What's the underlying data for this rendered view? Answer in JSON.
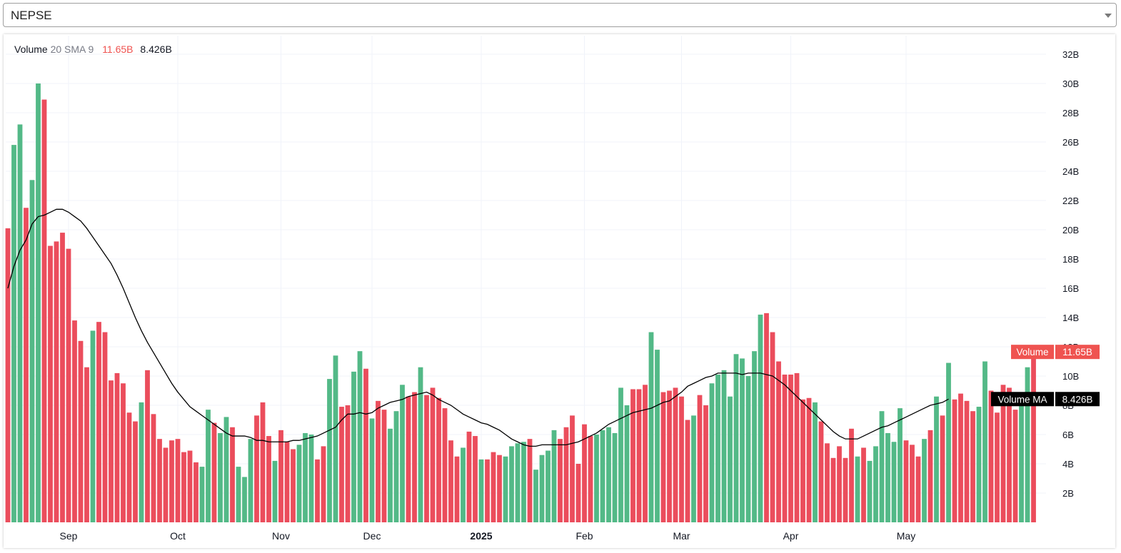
{
  "selector": {
    "value": "NEPSE",
    "icon": "chevron-down-icon"
  },
  "legend": {
    "name": "Volume",
    "params": "20 SMA 9",
    "volume_value": "11.65B",
    "ma_value": "8.426B"
  },
  "price_labels": {
    "volume": {
      "name": "Volume",
      "value": "11.65B",
      "color": "#ef5350"
    },
    "ma": {
      "name": "Volume MA",
      "value": "8.426B",
      "color": "#000000"
    }
  },
  "colors": {
    "up": "#53b987",
    "down": "#eb4d5c",
    "ma_line": "#000000",
    "grid": "#f0f3fa"
  },
  "chart_data": {
    "type": "bar",
    "ylim": [
      0,
      32
    ],
    "yunit": "B",
    "yticks": [
      "2B",
      "4B",
      "6B",
      "8B",
      "10B",
      "12B",
      "14B",
      "16B",
      "18B",
      "20B",
      "22B",
      "24B",
      "26B",
      "28B",
      "30B",
      "32B"
    ],
    "xticks": [
      {
        "label": "Sep",
        "index": 10,
        "bold": false
      },
      {
        "label": "Oct",
        "index": 28,
        "bold": false
      },
      {
        "label": "Nov",
        "index": 45,
        "bold": false
      },
      {
        "label": "Dec",
        "index": 60,
        "bold": false
      },
      {
        "label": "2025",
        "index": 78,
        "bold": true
      },
      {
        "label": "Feb",
        "index": 95,
        "bold": false
      },
      {
        "label": "Mar",
        "index": 111,
        "bold": false
      },
      {
        "label": "Apr",
        "index": 129,
        "bold": false
      },
      {
        "label": "May",
        "index": 148,
        "bold": false
      }
    ],
    "volume": [
      {
        "v": 20.1,
        "d": "down"
      },
      {
        "v": 25.8,
        "d": "up"
      },
      {
        "v": 27.2,
        "d": "up"
      },
      {
        "v": 21.5,
        "d": "down"
      },
      {
        "v": 23.4,
        "d": "up"
      },
      {
        "v": 30.0,
        "d": "up"
      },
      {
        "v": 28.9,
        "d": "down"
      },
      {
        "v": 18.9,
        "d": "down"
      },
      {
        "v": 19.2,
        "d": "down"
      },
      {
        "v": 19.8,
        "d": "down"
      },
      {
        "v": 18.7,
        "d": "down"
      },
      {
        "v": 13.8,
        "d": "down"
      },
      {
        "v": 12.4,
        "d": "down"
      },
      {
        "v": 10.6,
        "d": "down"
      },
      {
        "v": 13.1,
        "d": "up"
      },
      {
        "v": 13.7,
        "d": "down"
      },
      {
        "v": 13.0,
        "d": "down"
      },
      {
        "v": 9.7,
        "d": "down"
      },
      {
        "v": 10.2,
        "d": "down"
      },
      {
        "v": 9.5,
        "d": "down"
      },
      {
        "v": 7.5,
        "d": "down"
      },
      {
        "v": 6.9,
        "d": "down"
      },
      {
        "v": 8.2,
        "d": "up"
      },
      {
        "v": 10.4,
        "d": "down"
      },
      {
        "v": 7.4,
        "d": "down"
      },
      {
        "v": 5.7,
        "d": "down"
      },
      {
        "v": 5.1,
        "d": "down"
      },
      {
        "v": 5.6,
        "d": "down"
      },
      {
        "v": 5.7,
        "d": "down"
      },
      {
        "v": 4.8,
        "d": "down"
      },
      {
        "v": 4.9,
        "d": "down"
      },
      {
        "v": 4.1,
        "d": "down"
      },
      {
        "v": 3.8,
        "d": "up"
      },
      {
        "v": 7.7,
        "d": "up"
      },
      {
        "v": 6.8,
        "d": "down"
      },
      {
        "v": 6.1,
        "d": "up"
      },
      {
        "v": 7.2,
        "d": "up"
      },
      {
        "v": 6.5,
        "d": "down"
      },
      {
        "v": 3.8,
        "d": "up"
      },
      {
        "v": 3.1,
        "d": "up"
      },
      {
        "v": 5.7,
        "d": "up"
      },
      {
        "v": 7.3,
        "d": "down"
      },
      {
        "v": 8.2,
        "d": "down"
      },
      {
        "v": 5.9,
        "d": "down"
      },
      {
        "v": 4.2,
        "d": "up"
      },
      {
        "v": 6.3,
        "d": "down"
      },
      {
        "v": 5.5,
        "d": "down"
      },
      {
        "v": 5.0,
        "d": "down"
      },
      {
        "v": 5.3,
        "d": "up"
      },
      {
        "v": 6.1,
        "d": "up"
      },
      {
        "v": 6.0,
        "d": "up"
      },
      {
        "v": 4.3,
        "d": "down"
      },
      {
        "v": 5.2,
        "d": "down"
      },
      {
        "v": 9.8,
        "d": "up"
      },
      {
        "v": 11.4,
        "d": "up"
      },
      {
        "v": 7.9,
        "d": "down"
      },
      {
        "v": 8.0,
        "d": "down"
      },
      {
        "v": 10.3,
        "d": "up"
      },
      {
        "v": 11.7,
        "d": "up"
      },
      {
        "v": 10.5,
        "d": "down"
      },
      {
        "v": 7.1,
        "d": "up"
      },
      {
        "v": 8.3,
        "d": "down"
      },
      {
        "v": 7.7,
        "d": "down"
      },
      {
        "v": 6.4,
        "d": "up"
      },
      {
        "v": 7.6,
        "d": "up"
      },
      {
        "v": 9.4,
        "d": "up"
      },
      {
        "v": 8.6,
        "d": "down"
      },
      {
        "v": 8.9,
        "d": "down"
      },
      {
        "v": 10.6,
        "d": "up"
      },
      {
        "v": 8.7,
        "d": "down"
      },
      {
        "v": 9.2,
        "d": "down"
      },
      {
        "v": 8.5,
        "d": "down"
      },
      {
        "v": 7.8,
        "d": "down"
      },
      {
        "v": 5.6,
        "d": "down"
      },
      {
        "v": 4.5,
        "d": "down"
      },
      {
        "v": 5.1,
        "d": "up"
      },
      {
        "v": 6.2,
        "d": "down"
      },
      {
        "v": 5.9,
        "d": "down"
      },
      {
        "v": 4.3,
        "d": "up"
      },
      {
        "v": 4.3,
        "d": "down"
      },
      {
        "v": 4.8,
        "d": "down"
      },
      {
        "v": 4.6,
        "d": "down"
      },
      {
        "v": 4.5,
        "d": "up"
      },
      {
        "v": 5.2,
        "d": "up"
      },
      {
        "v": 5.4,
        "d": "up"
      },
      {
        "v": 5.5,
        "d": "up"
      },
      {
        "v": 5.7,
        "d": "down"
      },
      {
        "v": 3.6,
        "d": "up"
      },
      {
        "v": 4.6,
        "d": "up"
      },
      {
        "v": 4.9,
        "d": "up"
      },
      {
        "v": 6.3,
        "d": "up"
      },
      {
        "v": 5.7,
        "d": "down"
      },
      {
        "v": 6.5,
        "d": "down"
      },
      {
        "v": 7.3,
        "d": "down"
      },
      {
        "v": 4.0,
        "d": "down"
      },
      {
        "v": 6.7,
        "d": "down"
      },
      {
        "v": 5.9,
        "d": "down"
      },
      {
        "v": 6.0,
        "d": "up"
      },
      {
        "v": 6.3,
        "d": "up"
      },
      {
        "v": 6.5,
        "d": "up"
      },
      {
        "v": 6.1,
        "d": "up"
      },
      {
        "v": 9.2,
        "d": "up"
      },
      {
        "v": 8.0,
        "d": "up"
      },
      {
        "v": 9.1,
        "d": "down"
      },
      {
        "v": 9.1,
        "d": "down"
      },
      {
        "v": 9.4,
        "d": "down"
      },
      {
        "v": 13.0,
        "d": "up"
      },
      {
        "v": 11.8,
        "d": "up"
      },
      {
        "v": 8.9,
        "d": "down"
      },
      {
        "v": 9.0,
        "d": "down"
      },
      {
        "v": 9.2,
        "d": "down"
      },
      {
        "v": 8.6,
        "d": "down"
      },
      {
        "v": 7.0,
        "d": "down"
      },
      {
        "v": 7.3,
        "d": "up"
      },
      {
        "v": 8.7,
        "d": "down"
      },
      {
        "v": 8.0,
        "d": "down"
      },
      {
        "v": 9.5,
        "d": "up"
      },
      {
        "v": 10.1,
        "d": "up"
      },
      {
        "v": 10.4,
        "d": "up"
      },
      {
        "v": 8.6,
        "d": "up"
      },
      {
        "v": 11.5,
        "d": "up"
      },
      {
        "v": 11.2,
        "d": "up"
      },
      {
        "v": 10.0,
        "d": "up"
      },
      {
        "v": 11.7,
        "d": "up"
      },
      {
        "v": 14.2,
        "d": "up"
      },
      {
        "v": 14.3,
        "d": "down"
      },
      {
        "v": 13.0,
        "d": "down"
      },
      {
        "v": 11.0,
        "d": "down"
      },
      {
        "v": 10.1,
        "d": "down"
      },
      {
        "v": 10.1,
        "d": "down"
      },
      {
        "v": 10.2,
        "d": "down"
      },
      {
        "v": 8.4,
        "d": "down"
      },
      {
        "v": 8.5,
        "d": "down"
      },
      {
        "v": 8.2,
        "d": "up"
      },
      {
        "v": 6.9,
        "d": "down"
      },
      {
        "v": 5.4,
        "d": "down"
      },
      {
        "v": 4.4,
        "d": "down"
      },
      {
        "v": 5.2,
        "d": "down"
      },
      {
        "v": 4.4,
        "d": "down"
      },
      {
        "v": 6.4,
        "d": "down"
      },
      {
        "v": 4.5,
        "d": "up"
      },
      {
        "v": 5.1,
        "d": "down"
      },
      {
        "v": 4.2,
        "d": "up"
      },
      {
        "v": 5.2,
        "d": "up"
      },
      {
        "v": 7.6,
        "d": "up"
      },
      {
        "v": 6.1,
        "d": "up"
      },
      {
        "v": 5.5,
        "d": "up"
      },
      {
        "v": 7.8,
        "d": "up"
      },
      {
        "v": 5.6,
        "d": "down"
      },
      {
        "v": 5.3,
        "d": "down"
      },
      {
        "v": 4.5,
        "d": "down"
      },
      {
        "v": 5.7,
        "d": "up"
      },
      {
        "v": 6.3,
        "d": "down"
      },
      {
        "v": 8.6,
        "d": "up"
      },
      {
        "v": 7.3,
        "d": "down"
      },
      {
        "v": 10.9,
        "d": "up"
      },
      {
        "v": 8.4,
        "d": "down"
      },
      {
        "v": 8.8,
        "d": "down"
      },
      {
        "v": 8.3,
        "d": "down"
      },
      {
        "v": 7.6,
        "d": "down"
      },
      {
        "v": 7.9,
        "d": "up"
      },
      {
        "v": 11.0,
        "d": "up"
      },
      {
        "v": 9.0,
        "d": "down"
      },
      {
        "v": 7.5,
        "d": "down"
      },
      {
        "v": 9.4,
        "d": "down"
      },
      {
        "v": 9.2,
        "d": "down"
      },
      {
        "v": 7.7,
        "d": "down"
      },
      {
        "v": 8.7,
        "d": "up"
      },
      {
        "v": 10.6,
        "d": "up"
      },
      {
        "v": 11.65,
        "d": "down"
      }
    ],
    "ma": [
      16.0,
      17.5,
      18.6,
      19.3,
      20.4,
      20.9,
      21.0,
      21.2,
      21.4,
      21.4,
      21.2,
      20.9,
      20.6,
      20.1,
      19.5,
      18.9,
      18.3,
      17.7,
      16.9,
      16.0,
      15.0,
      14.0,
      13.1,
      12.3,
      11.6,
      10.9,
      10.2,
      9.5,
      8.9,
      8.4,
      7.9,
      7.6,
      7.3,
      7.0,
      6.7,
      6.4,
      6.1,
      5.9,
      5.9,
      5.9,
      5.8,
      5.6,
      5.6,
      5.5,
      5.5,
      5.5,
      5.5,
      5.6,
      5.6,
      5.7,
      5.8,
      5.9,
      6.1,
      6.3,
      6.5,
      7.0,
      7.4,
      7.4,
      7.5,
      7.4,
      7.5,
      7.8,
      8.0,
      8.2,
      8.3,
      8.4,
      8.6,
      8.7,
      8.8,
      8.9,
      8.7,
      8.4,
      8.2,
      8.0,
      7.7,
      7.4,
      7.2,
      7.0,
      6.8,
      6.7,
      6.5,
      6.3,
      6.0,
      5.7,
      5.5,
      5.3,
      5.2,
      5.2,
      5.3,
      5.3,
      5.3,
      5.3,
      5.3,
      5.4,
      5.5,
      5.7,
      5.9,
      6.1,
      6.4,
      6.7,
      6.9,
      7.1,
      7.3,
      7.5,
      7.6,
      7.7,
      7.8,
      8.0,
      8.2,
      8.3,
      8.6,
      8.9,
      9.3,
      9.5,
      9.7,
      9.9,
      10.0,
      10.2,
      10.2,
      10.2,
      10.2,
      10.1,
      10.2,
      10.2,
      10.2,
      10.1,
      10.0,
      9.7,
      9.4,
      9.0,
      8.6,
      8.2,
      7.8,
      7.4,
      7.0,
      6.6,
      6.2,
      5.9,
      5.7,
      5.7,
      5.7,
      5.9,
      6.1,
      6.3,
      6.5,
      6.6,
      6.8,
      7.0,
      7.2,
      7.4,
      7.6,
      7.8,
      8.0,
      8.1,
      8.2,
      8.426
    ]
  }
}
